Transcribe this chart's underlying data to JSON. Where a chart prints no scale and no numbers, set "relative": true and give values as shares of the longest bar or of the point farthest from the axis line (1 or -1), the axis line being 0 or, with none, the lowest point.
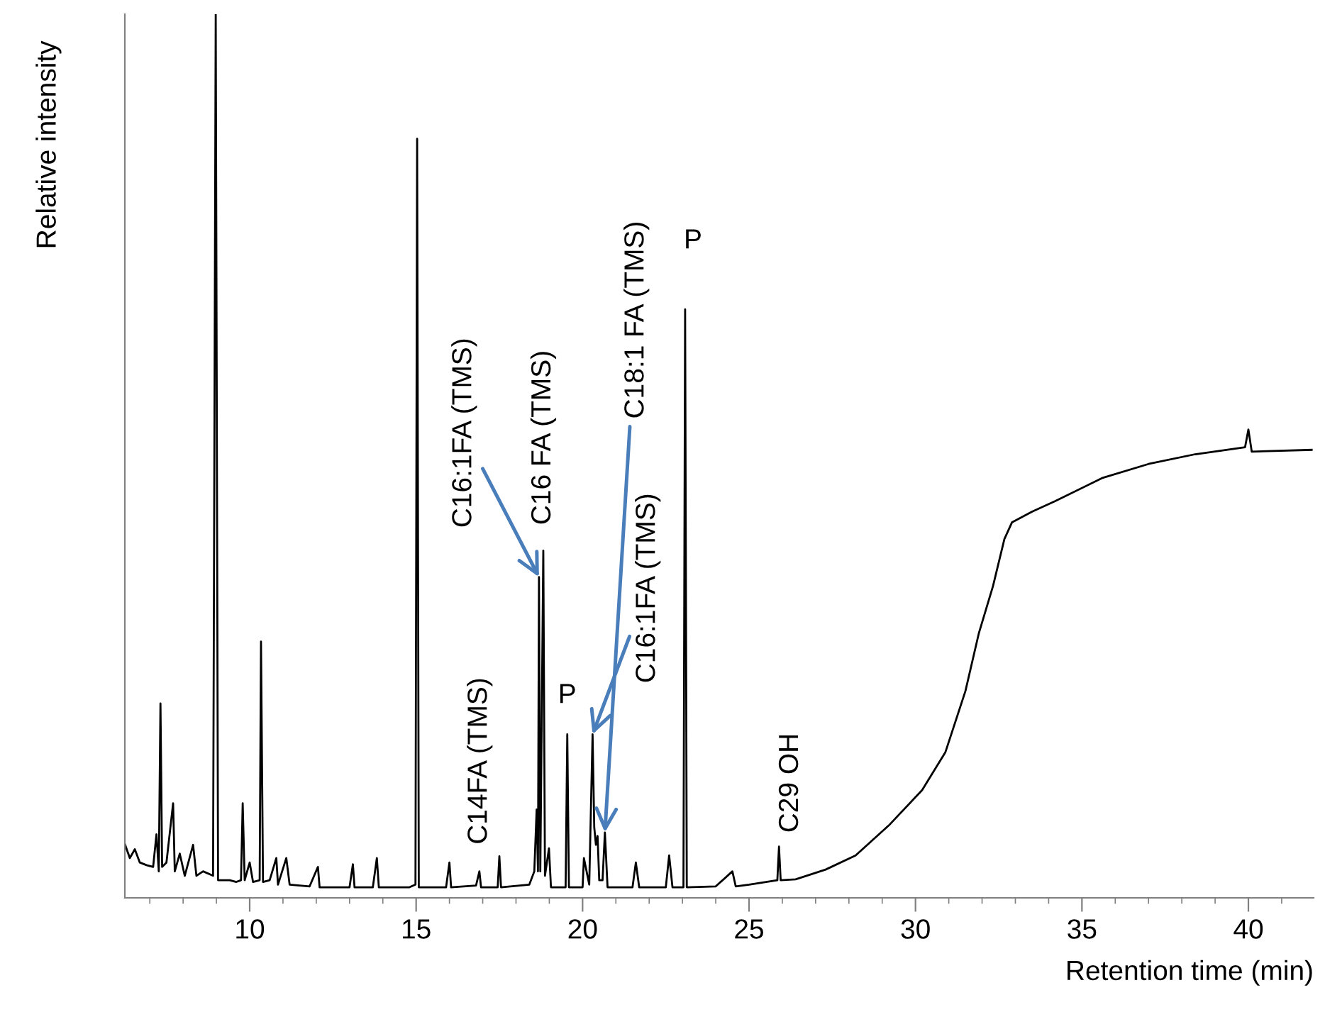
{
  "chart_data": {
    "type": "line",
    "relative": true,
    "xlabel": "Retention time (min)",
    "ylabel": "Relative intensity",
    "xlim": [
      6.25,
      41.96
    ],
    "xticks": [
      {
        "value": 7,
        "label": null
      },
      {
        "value": 8,
        "label": null
      },
      {
        "value": 9,
        "label": null
      },
      10,
      {
        "value": 11,
        "label": null
      },
      {
        "value": 12,
        "label": null
      },
      {
        "value": 13,
        "label": null
      },
      {
        "value": 14,
        "label": null
      },
      15,
      {
        "value": 16,
        "label": null
      },
      {
        "value": 17,
        "label": null
      },
      {
        "value": 18,
        "label": null
      },
      {
        "value": 19,
        "label": null
      },
      20,
      {
        "value": 21,
        "label": null
      },
      {
        "value": 22,
        "label": null
      },
      {
        "value": 23,
        "label": null
      },
      {
        "value": 24,
        "label": null
      },
      25,
      {
        "value": 26,
        "label": null
      },
      {
        "value": 27,
        "label": null
      },
      {
        "value": 28,
        "label": null
      },
      {
        "value": 29,
        "label": null
      },
      30,
      {
        "value": 31,
        "label": null
      },
      {
        "value": 32,
        "label": null
      },
      {
        "value": 33,
        "label": null
      },
      {
        "value": 34,
        "label": null
      },
      35,
      {
        "value": 36,
        "label": null
      },
      {
        "value": 37,
        "label": null
      },
      {
        "value": 38,
        "label": null
      },
      {
        "value": 39,
        "label": null
      },
      40,
      {
        "value": 41,
        "label": null
      }
    ],
    "grid": false,
    "series": [
      {
        "color": "#000000",
        "x": [
          6.25,
          6.4,
          6.55,
          6.7,
          6.9,
          7.1,
          7.2,
          7.27,
          7.32,
          7.37,
          7.5,
          7.7,
          7.75,
          7.9,
          8.05,
          8.3,
          8.4,
          8.6,
          8.9,
          8.98,
          9.05,
          9.4,
          9.6,
          9.74,
          9.79,
          9.85,
          10.0,
          10.1,
          10.3,
          10.34,
          10.4,
          10.6,
          10.8,
          10.85,
          11.1,
          11.2,
          11.8,
          12.05,
          12.1,
          13.0,
          13.1,
          13.15,
          13.7,
          13.82,
          13.88,
          14.8,
          14.98,
          15.03,
          15.08,
          15.9,
          16.0,
          16.05,
          16.8,
          16.9,
          16.95,
          17.45,
          17.5,
          17.55,
          18.4,
          18.55,
          18.62,
          18.66,
          18.69,
          18.73,
          18.82,
          18.87,
          18.99,
          19.05,
          19.49,
          19.54,
          19.59,
          20.0,
          20.04,
          20.2,
          20.3,
          20.35,
          20.4,
          20.45,
          20.5,
          20.6,
          20.67,
          20.75,
          21.5,
          21.6,
          21.7,
          22.5,
          22.6,
          22.7,
          23.03,
          23.08,
          23.13,
          24.0,
          24.5,
          24.6,
          25.0,
          25.85,
          25.9,
          25.95,
          26.4,
          27.3,
          28.2,
          29.2,
          30.2,
          30.9,
          31.5,
          31.9,
          32.33,
          32.67,
          32.9,
          33.5,
          34.2,
          35.6,
          37.0,
          38.4,
          39.9,
          40.0,
          40.1,
          41.9
        ],
        "values": [
          0.061,
          0.045,
          0.055,
          0.04,
          0.037,
          0.035,
          0.072,
          0.03,
          0.22,
          0.035,
          0.04,
          0.107,
          0.03,
          0.05,
          0.025,
          0.06,
          0.025,
          0.03,
          0.025,
          1.0,
          0.02,
          0.02,
          0.018,
          0.02,
          0.107,
          0.02,
          0.04,
          0.018,
          0.02,
          0.29,
          0.018,
          0.02,
          0.045,
          0.015,
          0.045,
          0.015,
          0.013,
          0.035,
          0.012,
          0.012,
          0.038,
          0.012,
          0.012,
          0.045,
          0.012,
          0.012,
          0.015,
          0.859,
          0.012,
          0.012,
          0.04,
          0.012,
          0.014,
          0.03,
          0.012,
          0.012,
          0.047,
          0.012,
          0.015,
          0.03,
          0.1,
          0.03,
          0.363,
          0.03,
          0.393,
          0.025,
          0.056,
          0.012,
          0.012,
          0.185,
          0.012,
          0.012,
          0.045,
          0.015,
          0.185,
          0.08,
          0.06,
          0.07,
          0.02,
          0.02,
          0.074,
          0.012,
          0.012,
          0.04,
          0.012,
          0.012,
          0.048,
          0.012,
          0.012,
          0.666,
          0.012,
          0.013,
          0.03,
          0.013,
          0.015,
          0.02,
          0.058,
          0.02,
          0.021,
          0.032,
          0.048,
          0.082,
          0.122,
          0.165,
          0.234,
          0.299,
          0.353,
          0.406,
          0.425,
          0.437,
          0.449,
          0.475,
          0.491,
          0.502,
          0.51,
          0.53,
          0.505,
          0.507
        ]
      }
    ],
    "annotations": [
      {
        "text": "C14FA (TMS)",
        "x": 17.5,
        "y": 0.047
      },
      {
        "text": "C16:1FA (TMS)",
        "x": 18.69,
        "y": 0.363
      },
      {
        "text": "C16 FA (TMS)",
        "x": 18.82,
        "y": 0.393
      },
      {
        "text": "P",
        "x": 19.54,
        "y": 0.185
      },
      {
        "text": "C18:1 FA (TMS)",
        "x": 20.67,
        "y": 0.074
      },
      {
        "text": "C16:1FA (TMS)",
        "x": 20.3,
        "y": 0.185
      },
      {
        "text": "P",
        "x": 23.08,
        "y": 0.666
      },
      {
        "text": "C29 OH",
        "x": 25.9,
        "y": 0.058
      }
    ]
  }
}
